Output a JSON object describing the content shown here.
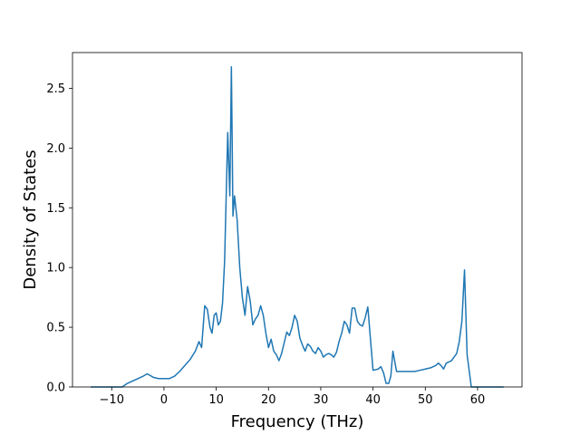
{
  "chart_data": {
    "type": "line",
    "title": "",
    "xlabel": "Frequency (THz)",
    "ylabel": "Density of States",
    "xlim": [
      -17.5,
      68.5
    ],
    "ylim": [
      0,
      2.8
    ],
    "xticks": [
      -10,
      0,
      10,
      20,
      30,
      40,
      50,
      60
    ],
    "xtick_labels": [
      "−10",
      "0",
      "10",
      "20",
      "30",
      "40",
      "50",
      "60"
    ],
    "yticks": [
      0.0,
      0.5,
      1.0,
      1.5,
      2.0,
      2.5
    ],
    "ytick_labels": [
      "0.0",
      "0.5",
      "1.0",
      "1.5",
      "2.0",
      "2.5"
    ],
    "grid": false,
    "legend": "none",
    "series": [
      {
        "color": "#1f77b4",
        "x": [
          -14.0,
          -8.0,
          -7.0,
          -6.0,
          -5.0,
          -4.0,
          -3.2,
          -2.0,
          -1.0,
          0.0,
          1.0,
          2.0,
          3.0,
          4.0,
          5.0,
          6.0,
          6.7,
          7.2,
          7.8,
          8.3,
          8.8,
          9.2,
          9.6,
          10.0,
          10.4,
          10.8,
          11.2,
          11.6,
          12.2,
          12.6,
          12.9,
          13.2,
          13.5,
          14.0,
          14.5,
          15.0,
          15.5,
          16.0,
          16.5,
          17.0,
          17.5,
          18.0,
          18.5,
          19.0,
          19.5,
          20.0,
          20.5,
          21.0,
          21.5,
          22.0,
          22.5,
          23.0,
          23.5,
          24.0,
          24.5,
          25.0,
          25.5,
          26.0,
          26.5,
          27.0,
          27.5,
          28.0,
          28.5,
          29.0,
          29.5,
          30.0,
          30.5,
          31.0,
          31.5,
          32.0,
          32.5,
          33.0,
          33.5,
          34.0,
          34.5,
          35.0,
          35.5,
          36.0,
          36.5,
          37.0,
          37.5,
          38.0,
          38.5,
          39.0,
          40.0,
          41.0,
          41.5,
          42.0,
          42.5,
          43.0,
          43.4,
          43.8,
          44.5,
          46.0,
          48.0,
          49.0,
          50.0,
          51.0,
          52.0,
          52.5,
          53.0,
          53.5,
          54.0,
          55.0,
          56.0,
          56.5,
          57.0,
          57.5,
          58.0,
          58.8,
          60.0,
          65.0
        ],
        "y": [
          0.0,
          0.0,
          0.03,
          0.05,
          0.07,
          0.09,
          0.11,
          0.08,
          0.07,
          0.07,
          0.07,
          0.09,
          0.13,
          0.18,
          0.23,
          0.3,
          0.38,
          0.33,
          0.68,
          0.65,
          0.5,
          0.45,
          0.6,
          0.62,
          0.52,
          0.55,
          0.7,
          1.05,
          2.13,
          1.6,
          2.68,
          1.43,
          1.6,
          1.4,
          1.0,
          0.75,
          0.6,
          0.84,
          0.72,
          0.52,
          0.57,
          0.6,
          0.68,
          0.6,
          0.45,
          0.33,
          0.4,
          0.3,
          0.27,
          0.22,
          0.28,
          0.37,
          0.46,
          0.43,
          0.5,
          0.6,
          0.55,
          0.41,
          0.35,
          0.3,
          0.36,
          0.34,
          0.3,
          0.28,
          0.33,
          0.3,
          0.25,
          0.27,
          0.28,
          0.27,
          0.25,
          0.29,
          0.38,
          0.45,
          0.55,
          0.52,
          0.45,
          0.66,
          0.66,
          0.55,
          0.52,
          0.51,
          0.58,
          0.67,
          0.14,
          0.15,
          0.17,
          0.12,
          0.03,
          0.03,
          0.09,
          0.3,
          0.13,
          0.13,
          0.13,
          0.14,
          0.15,
          0.16,
          0.18,
          0.2,
          0.18,
          0.15,
          0.2,
          0.22,
          0.28,
          0.38,
          0.55,
          0.98,
          0.27,
          0.0,
          0.0,
          0.0
        ]
      }
    ]
  }
}
